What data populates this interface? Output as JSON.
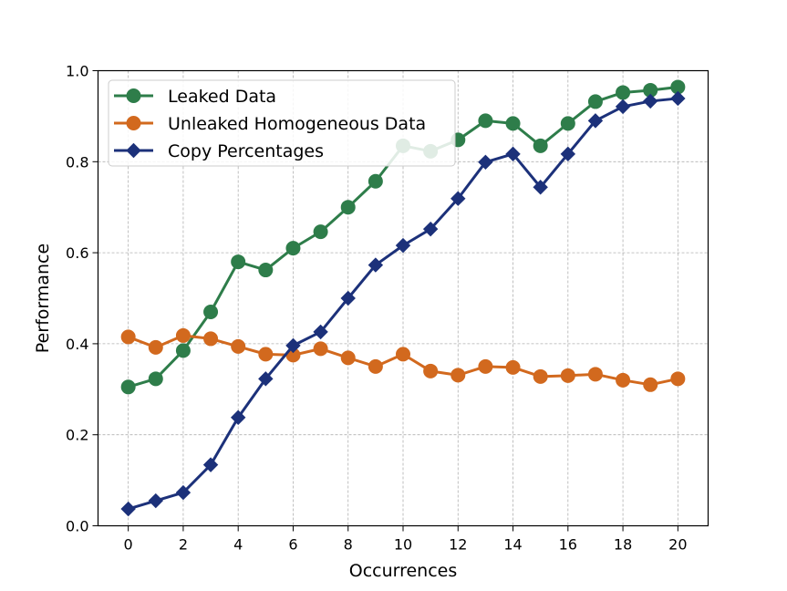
{
  "chart_data": {
    "type": "line",
    "title": "",
    "xlabel": "Occurrences",
    "ylabel": "Performance",
    "xlim": [
      -1.1,
      21.1
    ],
    "ylim": [
      0.0,
      1.0
    ],
    "xticks": [
      0,
      2,
      4,
      6,
      8,
      10,
      12,
      14,
      16,
      18,
      20
    ],
    "yticks": [
      0.0,
      0.2,
      0.4,
      0.6,
      0.8,
      1.0
    ],
    "xtick_labels": [
      "0",
      "2",
      "4",
      "6",
      "8",
      "10",
      "12",
      "14",
      "16",
      "18",
      "20"
    ],
    "ytick_labels": [
      "0.0",
      "0.2",
      "0.4",
      "0.6",
      "0.8",
      "1.0"
    ],
    "grid": true,
    "legend_position": "top-left",
    "x": [
      0,
      1,
      2,
      3,
      4,
      5,
      6,
      7,
      8,
      9,
      10,
      11,
      12,
      13,
      14,
      15,
      16,
      17,
      18,
      19,
      20
    ],
    "series": [
      {
        "name": "Leaked Data",
        "color": "#2e7d4a",
        "marker": "circle",
        "values": [
          0.305,
          0.323,
          0.385,
          0.47,
          0.58,
          0.562,
          0.61,
          0.646,
          0.7,
          0.757,
          0.835,
          0.823,
          0.848,
          0.89,
          0.884,
          0.835,
          0.884,
          0.932,
          0.952,
          0.957,
          0.964
        ]
      },
      {
        "name": "Unleaked Homogeneous Data",
        "color": "#d2691e",
        "marker": "circle",
        "values": [
          0.415,
          0.392,
          0.418,
          0.411,
          0.394,
          0.377,
          0.375,
          0.389,
          0.369,
          0.35,
          0.377,
          0.34,
          0.331,
          0.35,
          0.348,
          0.328,
          0.33,
          0.333,
          0.32,
          0.31,
          0.323
        ]
      },
      {
        "name": "Copy Percentages",
        "color": "#1c317a",
        "marker": "diamond",
        "values": [
          0.037,
          0.055,
          0.073,
          0.134,
          0.238,
          0.323,
          0.396,
          0.426,
          0.5,
          0.573,
          0.616,
          0.652,
          0.719,
          0.799,
          0.817,
          0.744,
          0.817,
          0.89,
          0.921,
          0.933,
          0.939
        ]
      }
    ]
  }
}
